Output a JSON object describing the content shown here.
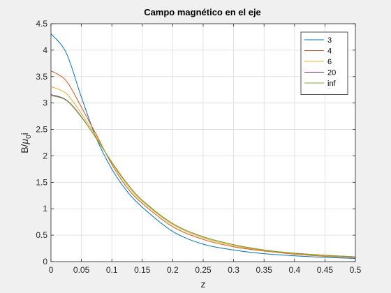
{
  "chart_data": {
    "type": "line",
    "title": "Campo magnético en el eje",
    "xlabel": "z",
    "ylabel_main": "B/",
    "ylabel_mu": "μ",
    "ylabel_sub": "0",
    "ylabel_tail": "i",
    "xlim": [
      0,
      0.5
    ],
    "ylim": [
      0,
      4.5
    ],
    "grid": true,
    "legend_position": "top-right",
    "x_ticks": [
      "0",
      "0.05",
      "0.1",
      "0.15",
      "0.2",
      "0.25",
      "0.3",
      "0.35",
      "0.4",
      "0.45",
      "0.5"
    ],
    "y_ticks": [
      "0",
      "0.5",
      "1",
      "1.5",
      "2",
      "2.5",
      "3",
      "3.5",
      "4",
      "4.5"
    ],
    "x": [
      0,
      0.025,
      0.05,
      0.075,
      0.1,
      0.125,
      0.15,
      0.2,
      0.25,
      0.3,
      0.35,
      0.4,
      0.45,
      0.5
    ],
    "series": [
      {
        "name": "3",
        "color": "#0072BD",
        "values": [
          4.31,
          3.95,
          3.11,
          2.32,
          1.75,
          1.33,
          1.03,
          0.57,
          0.33,
          0.22,
          0.15,
          0.11,
          0.08,
          0.06
        ]
      },
      {
        "name": "4",
        "color": "#D95319",
        "values": [
          3.61,
          3.42,
          2.92,
          2.39,
          1.84,
          1.4,
          1.1,
          0.66,
          0.42,
          0.28,
          0.2,
          0.14,
          0.1,
          0.08
        ]
      },
      {
        "name": "6",
        "color": "#EDB120",
        "values": [
          3.31,
          3.18,
          2.8,
          2.35,
          1.87,
          1.45,
          1.14,
          0.7,
          0.45,
          0.3,
          0.21,
          0.15,
          0.11,
          0.09
        ]
      },
      {
        "name": "20",
        "color": "#7E2F8E",
        "values": [
          3.16,
          3.06,
          2.74,
          2.32,
          1.88,
          1.48,
          1.16,
          0.72,
          0.47,
          0.32,
          0.22,
          0.16,
          0.12,
          0.09
        ]
      },
      {
        "name": "inf",
        "color": "#77AC30",
        "values": [
          3.14,
          3.05,
          2.73,
          2.32,
          1.88,
          1.48,
          1.16,
          0.72,
          0.47,
          0.32,
          0.22,
          0.16,
          0.12,
          0.09
        ]
      }
    ]
  }
}
